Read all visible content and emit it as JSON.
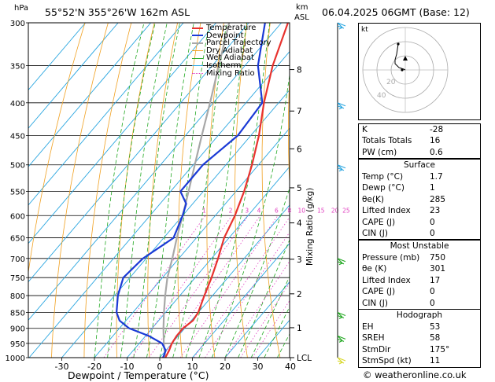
{
  "header": {
    "p_unit": "hPa",
    "location": "55°52'N 355°26'W 162m ASL",
    "km_unit": "km",
    "asl": "ASL",
    "datetime": "06.04.2025 06GMT (Base: 12)",
    "credit": "© weatheronline.co.uk",
    "mixing_axis_label": "Mixing Ratio (g/kg)"
  },
  "chart_data": {
    "type": "skew-t",
    "xlabel": "Dewpoint / Temperature (°C)",
    "x_ticks": [
      -30,
      -20,
      -10,
      0,
      10,
      20,
      30,
      40
    ],
    "pressure_ticks": [
      300,
      350,
      400,
      450,
      500,
      550,
      600,
      650,
      700,
      750,
      800,
      850,
      900,
      950,
      1000
    ],
    "km_ticks": [
      {
        "label": "8",
        "p": 355
      },
      {
        "label": "7",
        "p": 412
      },
      {
        "label": "6",
        "p": 472
      },
      {
        "label": "5",
        "p": 543
      },
      {
        "label": "4",
        "p": 616
      },
      {
        "label": "3",
        "p": 702
      },
      {
        "label": "2",
        "p": 795
      },
      {
        "label": "1",
        "p": 898
      },
      {
        "label": "LCL",
        "p": 1000
      }
    ],
    "mixing_ratio_labels": [
      "1",
      "2",
      "3",
      "4",
      "6",
      "8",
      "10",
      "15",
      "20",
      "25"
    ],
    "legend": [
      "Temperature",
      "Dewpoint",
      "Parcel Trajectory",
      "Dry Adiabat",
      "Wet Adiabat",
      "Isotherm",
      "Mixing Ratio"
    ],
    "colors": {
      "temperature": "#e8322e",
      "dewpoint": "#1a3ad6",
      "parcel": "#a8a8a8",
      "dry_adiabat": "#f0a020",
      "wet_adiabat": "#22a822",
      "isotherm": "#2aa6e0",
      "mixing_ratio": "#e040c0"
    },
    "temperature_profile": [
      [
        1000,
        1.7
      ],
      [
        975,
        1.0
      ],
      [
        950,
        0.0
      ],
      [
        925,
        -0.5
      ],
      [
        900,
        -0.5
      ],
      [
        875,
        0.5
      ],
      [
        850,
        0.0
      ],
      [
        800,
        -2.5
      ],
      [
        750,
        -5.0
      ],
      [
        700,
        -8.0
      ],
      [
        650,
        -11.5
      ],
      [
        600,
        -14.0
      ],
      [
        550,
        -17.5
      ],
      [
        500,
        -22.0
      ],
      [
        450,
        -27.5
      ],
      [
        400,
        -34.5
      ],
      [
        350,
        -41.5
      ],
      [
        300,
        -48.0
      ]
    ],
    "dewpoint_profile": [
      [
        1000,
        1.0
      ],
      [
        975,
        0.0
      ],
      [
        950,
        -3.0
      ],
      [
        925,
        -9.0
      ],
      [
        900,
        -17.0
      ],
      [
        875,
        -22.0
      ],
      [
        850,
        -25.0
      ],
      [
        800,
        -29.0
      ],
      [
        750,
        -32.0
      ],
      [
        700,
        -31.0
      ],
      [
        650,
        -27.0
      ],
      [
        600,
        -30.0
      ],
      [
        575,
        -32.0
      ],
      [
        550,
        -37.0
      ],
      [
        500,
        -37.0
      ],
      [
        450,
        -34.0
      ],
      [
        400,
        -35.0
      ],
      [
        350,
        -46.0
      ],
      [
        300,
        -55.0
      ]
    ],
    "parcel_profile": [
      [
        1000,
        1.7
      ],
      [
        950,
        -2.5
      ],
      [
        900,
        -6.5
      ],
      [
        850,
        -10.5
      ],
      [
        800,
        -14.5
      ],
      [
        750,
        -18.5
      ],
      [
        700,
        -22.0
      ],
      [
        650,
        -26.0
      ],
      [
        600,
        -30.0
      ],
      [
        550,
        -34.5
      ],
      [
        500,
        -39.5
      ],
      [
        450,
        -45.0
      ],
      [
        400,
        -51.0
      ],
      [
        350,
        -58.0
      ],
      [
        300,
        -66.0
      ]
    ]
  },
  "indices": [
    {
      "label": "K",
      "value": "-28"
    },
    {
      "label": "Totals Totals",
      "value": "16"
    },
    {
      "label": "PW (cm)",
      "value": "0.6"
    }
  ],
  "surface": {
    "title": "Surface",
    "rows": [
      {
        "label": "Temp (°C)",
        "value": "1.7"
      },
      {
        "label": "Dewp (°C)",
        "value": "1"
      },
      {
        "label": "θe(K)",
        "value": "285"
      },
      {
        "label": "Lifted Index",
        "value": "23"
      },
      {
        "label": "CAPE (J)",
        "value": "0"
      },
      {
        "label": "CIN (J)",
        "value": "0"
      }
    ]
  },
  "most_unstable": {
    "title": "Most Unstable",
    "rows": [
      {
        "label": "Pressure (mb)",
        "value": "750"
      },
      {
        "label": "θe (K)",
        "value": "301"
      },
      {
        "label": "Lifted Index",
        "value": "17"
      },
      {
        "label": "CAPE (J)",
        "value": "0"
      },
      {
        "label": "CIN (J)",
        "value": "0"
      }
    ]
  },
  "hodograph_table": {
    "title": "Hodograph",
    "rows": [
      {
        "label": "EH",
        "value": "53"
      },
      {
        "label": "SREH",
        "value": "58"
      },
      {
        "label": "StmDir",
        "value": "175°"
      },
      {
        "label": "StmSpd (kt)",
        "value": "11"
      }
    ]
  },
  "hodograph": {
    "unit_label": "kt",
    "ring_labels": [
      "20",
      "40"
    ]
  }
}
